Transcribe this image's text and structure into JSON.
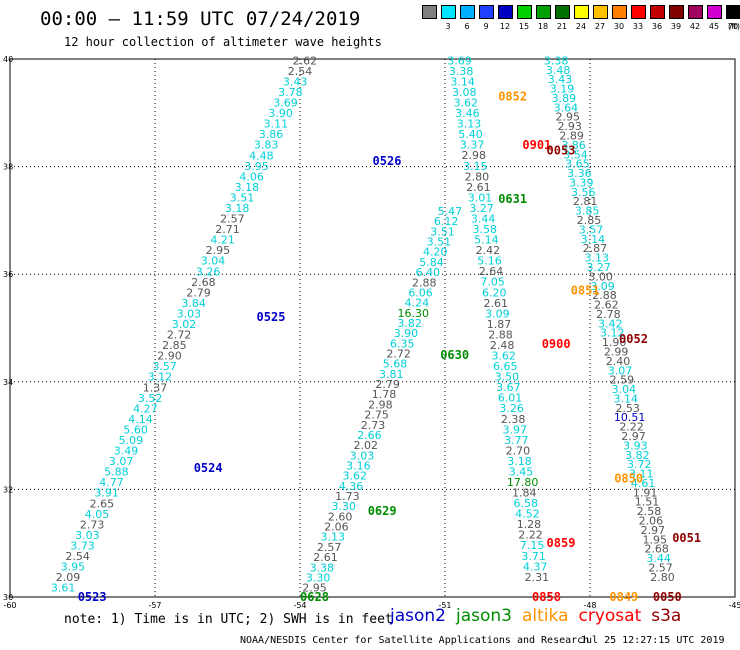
{
  "title": "00:00 – 11:59 UTC 07/24/2019",
  "subtitle": "12 hour collection of altimeter wave heights",
  "scale": {
    "unit": "(ft)",
    "levels": [
      {
        "label": "",
        "color": "#7f7f7f"
      },
      {
        "label": "3",
        "color": "#00e5ff"
      },
      {
        "label": "6",
        "color": "#00b0ff"
      },
      {
        "label": "9",
        "color": "#2040ff"
      },
      {
        "label": "12",
        "color": "#0000c0"
      },
      {
        "label": "15",
        "color": "#00d000"
      },
      {
        "label": "18",
        "color": "#00a000"
      },
      {
        "label": "21",
        "color": "#007000"
      },
      {
        "label": "24",
        "color": "#ffff00"
      },
      {
        "label": "27",
        "color": "#ffc000"
      },
      {
        "label": "30",
        "color": "#ff8000"
      },
      {
        "label": "33",
        "color": "#ff0000"
      },
      {
        "label": "36",
        "color": "#c00000"
      },
      {
        "label": "39",
        "color": "#800000"
      },
      {
        "label": "42",
        "color": "#a00060"
      },
      {
        "label": "45",
        "color": "#d000d0"
      },
      {
        "label": "70",
        "color": "#000000"
      }
    ]
  },
  "axes": {
    "x_ticks": [
      "-60",
      "-57",
      "-54",
      "-51",
      "-48",
      "-45"
    ],
    "y_ticks": [
      "30",
      "32",
      "34",
      "36",
      "38",
      "40"
    ],
    "lon_range": [
      -60,
      -45
    ],
    "lat_range": [
      30,
      40
    ]
  },
  "colors": {
    "gray": "#555555",
    "cyan": "#00d0d8",
    "jason2": "#0000c8",
    "jason3": "#008c00",
    "altika": "#ff9400",
    "cryosat": "#ff0000",
    "s3a": "#900000"
  },
  "tracks": [
    {
      "lon0": -58.9,
      "lat0": 30.1,
      "lon1": -53.9,
      "lat1": 39.9,
      "step": 0.1785,
      "values": [
        "3.61",
        "2.09",
        "3.95",
        "2.54",
        "3.73",
        "3.03",
        "2.73",
        "4.05",
        "2.65",
        "3.91",
        "4.77",
        "5.88",
        "3.07",
        "3.49",
        "5.09",
        "5.60",
        "4.14",
        "4.27",
        "3.52",
        "1.37",
        "3.12",
        "3.57",
        "2.90",
        "2.85",
        "2.72",
        "3.02",
        "3.03",
        "3.84",
        "2.79",
        "2.68",
        "3.26",
        "3.04",
        "2.95",
        "4.21",
        "2.71",
        "2.57",
        "3.18",
        "3.51",
        "3.18",
        "4.06",
        "3.95",
        "4.48",
        "3.83",
        "3.86",
        "3.11",
        "3.90",
        "3.69",
        "3.78",
        "3.43",
        "2.54",
        "2.62"
      ],
      "colors": [
        "cyan",
        "gray",
        "cyan",
        "gray",
        "cyan",
        "cyan",
        "gray",
        "cyan",
        "gray",
        "cyan",
        "cyan",
        "cyan",
        "cyan",
        "cyan",
        "cyan",
        "cyan",
        "cyan",
        "cyan",
        "cyan",
        "gray",
        "cyan",
        "cyan",
        "gray",
        "gray",
        "gray",
        "cyan",
        "cyan",
        "cyan",
        "gray",
        "gray",
        "cyan",
        "cyan",
        "gray",
        "cyan",
        "gray",
        "gray",
        "cyan",
        "cyan",
        "cyan",
        "cyan",
        "cyan",
        "cyan",
        "cyan",
        "cyan",
        "cyan",
        "cyan",
        "cyan",
        "cyan",
        "cyan",
        "gray",
        "gray"
      ]
    },
    {
      "lon0": -53.7,
      "lat0": 30.1,
      "lon1": -50.9,
      "lat1": 37.1,
      "step": 0.1785,
      "values": [
        "2.95",
        "3.30",
        "3.38",
        "2.61",
        "2.57",
        "3.13",
        "2.06",
        "2.60",
        "3.30",
        "1.73",
        "4.36",
        "3.62",
        "3.16",
        "3.03",
        "2.02",
        "2.66",
        "2.73",
        "2.75",
        "2.98",
        "1.78",
        "2.79",
        "3.81",
        "5.68",
        "2.72",
        "6.35",
        "3.90",
        "3.82",
        "16.30",
        "4.24",
        "6.06",
        "2.88",
        "6.40",
        "5.84",
        "4.20",
        "3.51",
        "3.51",
        "6.12",
        "5.47"
      ],
      "colors": [
        "gray",
        "cyan",
        "cyan",
        "gray",
        "gray",
        "cyan",
        "gray",
        "gray",
        "cyan",
        "gray",
        "cyan",
        "cyan",
        "cyan",
        "cyan",
        "gray",
        "cyan",
        "gray",
        "gray",
        "gray",
        "gray",
        "gray",
        "cyan",
        "cyan",
        "gray",
        "cyan",
        "cyan",
        "cyan",
        "jason3",
        "cyan",
        "cyan",
        "gray",
        "cyan",
        "cyan",
        "cyan",
        "cyan",
        "cyan",
        "cyan",
        "cyan"
      ]
    },
    {
      "lon0": -49.1,
      "lat0": 30.3,
      "lon1": -50.7,
      "lat1": 39.9,
      "step": 0.1785,
      "values": [
        "2.31",
        "4.37",
        "3.71",
        "7.15",
        "2.22",
        "1.28",
        "4.52",
        "6.58",
        "1.84",
        "17.80",
        "3.45",
        "3.18",
        "2.70",
        "3.77",
        "3.97",
        "2.38",
        "3.26",
        "6.01",
        "3.67",
        "3.50",
        "6.65",
        "3.62",
        "2.48",
        "2.88",
        "1.87",
        "3.09",
        "2.61",
        "6.20",
        "7.05",
        "2.64",
        "5.16",
        "2.42",
        "5.14",
        "3.58",
        "3.44",
        "3.27",
        "3.01",
        "2.61",
        "2.80",
        "3.15",
        "2.98",
        "3.37",
        "5.40",
        "3.13",
        "3.46",
        "3.62",
        "3.08",
        "3.14",
        "3.38",
        "3.69"
      ],
      "colors": [
        "gray",
        "cyan",
        "cyan",
        "cyan",
        "gray",
        "gray",
        "cyan",
        "cyan",
        "gray",
        "jason3",
        "cyan",
        "cyan",
        "gray",
        "cyan",
        "cyan",
        "gray",
        "cyan",
        "cyan",
        "cyan",
        "cyan",
        "cyan",
        "cyan",
        "gray",
        "gray",
        "gray",
        "cyan",
        "gray",
        "cyan",
        "cyan",
        "gray",
        "cyan",
        "gray",
        "cyan",
        "cyan",
        "cyan",
        "cyan",
        "cyan",
        "gray",
        "gray",
        "cyan",
        "gray",
        "cyan",
        "cyan",
        "cyan",
        "cyan",
        "cyan",
        "cyan",
        "cyan",
        "cyan",
        "cyan"
      ]
    },
    {
      "lon0": -46.5,
      "lat0": 30.3,
      "lon1": -48.7,
      "lat1": 39.9,
      "step": 0.1785,
      "values": [
        "2.80",
        "2.57",
        "3.44",
        "2.68",
        "1.95",
        "2.97",
        "2.06",
        "2.58",
        "1.51",
        "1.91",
        "4.61",
        "3.11",
        "3.72",
        "3.82",
        "3.93",
        "2.97",
        "2.22",
        "10.51",
        "2.53",
        "3.14",
        "3.04",
        "2.59",
        "3.07",
        "2.40",
        "2.99",
        "1.90",
        "3.12",
        "3.42",
        "2.78",
        "2.62",
        "2.88",
        "3.09",
        "3.00",
        "3.27",
        "3.13",
        "2.87",
        "3.14",
        "3.57",
        "2.85",
        "3.85",
        "2.81",
        "3.56",
        "3.39",
        "3.36",
        "3.65",
        "3.54",
        "3.86",
        "2.89",
        "2.93",
        "2.95",
        "3.64",
        "3.89",
        "3.19",
        "3.43",
        "3.48",
        "3.38"
      ],
      "colors": [
        "gray",
        "gray",
        "cyan",
        "gray",
        "gray",
        "gray",
        "gray",
        "gray",
        "gray",
        "gray",
        "cyan",
        "cyan",
        "cyan",
        "cyan",
        "cyan",
        "gray",
        "gray",
        "jason2",
        "gray",
        "cyan",
        "cyan",
        "gray",
        "cyan",
        "gray",
        "gray",
        "gray",
        "cyan",
        "cyan",
        "gray",
        "gray",
        "gray",
        "cyan",
        "gray",
        "cyan",
        "cyan",
        "gray",
        "cyan",
        "cyan",
        "gray",
        "cyan",
        "gray",
        "cyan",
        "cyan",
        "cyan",
        "cyan",
        "cyan",
        "cyan",
        "gray",
        "gray",
        "gray",
        "cyan",
        "cyan",
        "cyan",
        "cyan",
        "cyan",
        "cyan"
      ]
    }
  ],
  "time_labels": [
    {
      "text": "0523",
      "lon": -58.3,
      "lat": 30.0,
      "sat": "jason2"
    },
    {
      "text": "0524",
      "lon": -55.9,
      "lat": 32.4,
      "sat": "jason2"
    },
    {
      "text": "0525",
      "lon": -54.6,
      "lat": 35.2,
      "sat": "jason2"
    },
    {
      "text": "0526",
      "lon": -52.2,
      "lat": 38.1,
      "sat": "jason2"
    },
    {
      "text": "0628",
      "lon": -53.7,
      "lat": 30.0,
      "sat": "jason3"
    },
    {
      "text": "0629",
      "lon": -52.3,
      "lat": 31.6,
      "sat": "jason3"
    },
    {
      "text": "0630",
      "lon": -50.8,
      "lat": 34.5,
      "sat": "jason3"
    },
    {
      "text": "0631",
      "lon": -49.6,
      "lat": 37.4,
      "sat": "jason3"
    },
    {
      "text": "0852",
      "lon": -49.6,
      "lat": 39.3,
      "sat": "altika"
    },
    {
      "text": "0851",
      "lon": -48.1,
      "lat": 35.7,
      "sat": "altika"
    },
    {
      "text": "0850",
      "lon": -47.2,
      "lat": 32.2,
      "sat": "altika"
    },
    {
      "text": "0849",
      "lon": -47.3,
      "lat": 30.0,
      "sat": "altika"
    },
    {
      "text": "0901",
      "lon": -49.1,
      "lat": 38.4,
      "sat": "cryosat"
    },
    {
      "text": "0900",
      "lon": -48.7,
      "lat": 34.7,
      "sat": "cryosat"
    },
    {
      "text": "0859",
      "lon": -48.6,
      "lat": 31.0,
      "sat": "cryosat"
    },
    {
      "text": "0858",
      "lon": -48.9,
      "lat": 30.0,
      "sat": "cryosat"
    },
    {
      "text": "0053",
      "lon": -48.6,
      "lat": 38.3,
      "sat": "s3a"
    },
    {
      "text": "0052",
      "lon": -47.1,
      "lat": 34.8,
      "sat": "s3a"
    },
    {
      "text": "0051",
      "lon": -46.0,
      "lat": 31.1,
      "sat": "s3a"
    },
    {
      "text": "0050",
      "lon": -46.4,
      "lat": 30.0,
      "sat": "s3a"
    }
  ],
  "note": "note: 1) Time is in UTC; 2) SWH is in feet",
  "legend": [
    {
      "label": "jason2",
      "sat": "jason2"
    },
    {
      "label": "jason3",
      "sat": "jason3"
    },
    {
      "label": "altika",
      "sat": "altika"
    },
    {
      "label": "cryosat",
      "sat": "cryosat"
    },
    {
      "label": "s3a",
      "sat": "s3a"
    }
  ],
  "footer_left": "NOAA/NESDIS Center for Satellite Applications and Research",
  "footer_right": "Jul 25 12:27:15 UTC 2019"
}
